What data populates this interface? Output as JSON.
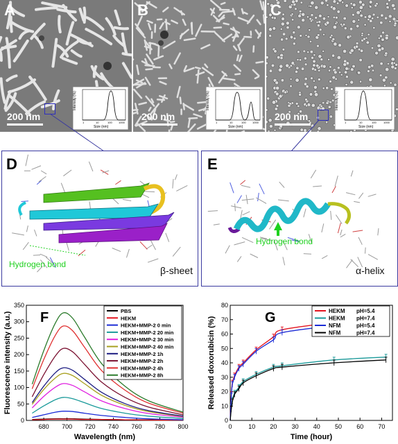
{
  "panels": {
    "A": {
      "letter": "A",
      "scale": "200 nm"
    },
    "B": {
      "letter": "B",
      "scale": "200 nm"
    },
    "C": {
      "letter": "C",
      "scale": "200 nm"
    },
    "D": {
      "letter": "D",
      "caption": "β-sheet",
      "hbond": "Hydrogen bond"
    },
    "E": {
      "letter": "E",
      "caption": "α-helix",
      "hbond": "Hydrogen bond"
    },
    "F": {
      "letter": "F"
    },
    "G": {
      "letter": "G"
    }
  },
  "inset": {
    "ylabel": "Intensity (%)",
    "xlabel": "Size (nm)",
    "xticks": [
      "1",
      "10",
      "100",
      "1000"
    ]
  },
  "colors": {
    "box": "#3a3aa0",
    "hbond": "#1fd11f",
    "tem": "#7d7d7d"
  },
  "chart_data": [
    {
      "type": "line",
      "panel": "F",
      "xlabel": "Wavelength (nm)",
      "ylabel": "Fluorescence intensity (a.u.)",
      "xlim": [
        665,
        800
      ],
      "ylim": [
        0,
        350
      ],
      "xticks": [
        680,
        700,
        720,
        740,
        760,
        780,
        800
      ],
      "yticks": [
        0,
        50,
        100,
        150,
        200,
        250,
        300,
        350
      ],
      "x": [
        670,
        680,
        690,
        697,
        705,
        715,
        730,
        750,
        770,
        800
      ],
      "legend_position": "top-right",
      "series": [
        {
          "name": "PBS",
          "color": "#000000",
          "values": [
            3,
            4,
            5,
            5,
            5,
            4,
            3,
            2,
            2,
            1
          ]
        },
        {
          "name": "HEKM",
          "color": "#e4141e",
          "values": [
            2,
            3,
            4,
            4,
            4,
            3,
            3,
            2,
            1,
            1
          ]
        },
        {
          "name": "HEKM+MMP-2 0 min",
          "color": "#1a2bd6",
          "values": [
            9,
            17,
            25,
            28,
            27,
            22,
            15,
            9,
            5,
            2
          ]
        },
        {
          "name": "HEKM+MMP-2 20 min",
          "color": "#1a9a9a",
          "values": [
            22,
            44,
            63,
            70,
            66,
            54,
            36,
            22,
            13,
            6
          ]
        },
        {
          "name": "HEKM+MMP-2 30 min",
          "color": "#e020e0",
          "values": [
            38,
            73,
            101,
            112,
            106,
            87,
            59,
            36,
            21,
            10
          ]
        },
        {
          "name": "HEKM+MMP-2 40 min",
          "color": "#a8a020",
          "values": [
            49,
            94,
            129,
            143,
            136,
            112,
            76,
            46,
            27,
            12
          ]
        },
        {
          "name": "HEKM+MMP-2 1h",
          "color": "#1a1a80",
          "values": [
            54,
            104,
            145,
            160,
            152,
            125,
            85,
            51,
            30,
            13
          ]
        },
        {
          "name": "HEKM+MMP-2 2h",
          "color": "#7a1030",
          "values": [
            72,
            139,
            196,
            219,
            208,
            171,
            116,
            70,
            41,
            17
          ]
        },
        {
          "name": "HEKM+MMP-2 4h",
          "color": "#e03030",
          "values": [
            96,
            185,
            259,
            287,
            272,
            223,
            151,
            92,
            53,
            22
          ]
        },
        {
          "name": "HEKM+MMP-2 8h",
          "color": "#2a7a2a",
          "values": [
            110,
            212,
            296,
            327,
            310,
            254,
            172,
            104,
            60,
            25
          ]
        }
      ]
    },
    {
      "type": "line",
      "panel": "G",
      "xlabel": "Time (hour)",
      "ylabel": "Released doxorubicin (%)",
      "xlim": [
        0,
        75
      ],
      "ylim": [
        0,
        80
      ],
      "xticks": [
        0,
        10,
        20,
        30,
        40,
        50,
        60,
        70
      ],
      "yticks": [
        0,
        10,
        20,
        30,
        40,
        50,
        60,
        70,
        80
      ],
      "x": [
        0,
        0.5,
        1,
        2,
        4,
        6,
        12,
        20,
        24,
        48,
        72
      ],
      "legend_position": "top-left",
      "series": [
        {
          "name": "HEKM",
          "ph": "pH=5.4",
          "color": "#e4141e",
          "values": [
            0,
            18,
            26,
            31,
            37,
            40,
            49,
            58,
            63,
            68,
            72
          ]
        },
        {
          "name": "HEKM",
          "ph": "pH=7.4",
          "color": "#1a9a9a",
          "values": [
            0,
            9,
            14,
            19,
            23,
            27,
            32,
            37,
            38,
            42,
            44
          ]
        },
        {
          "name": "NFM",
          "ph": "pH=5.4",
          "color": "#1a2bd6",
          "values": [
            0,
            17,
            25,
            30,
            36,
            39,
            48,
            56,
            61,
            66,
            71
          ]
        },
        {
          "name": "NFM",
          "ph": "pH=7.4",
          "color": "#000000",
          "values": [
            0,
            8,
            13,
            18,
            22,
            26,
            31,
            36,
            37,
            40,
            42
          ]
        }
      ]
    }
  ]
}
